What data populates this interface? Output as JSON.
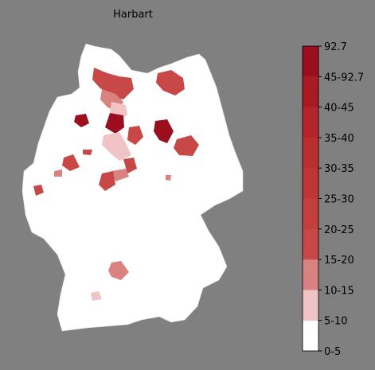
{
  "title": "Harbart",
  "colorbar": {
    "labels": [
      "0-5",
      "5-10",
      "10-15",
      "15-20",
      "20-25",
      "25-30",
      "30-35",
      "35-40",
      "40-45",
      "45-92.7",
      "92.7"
    ],
    "colors": [
      "#ffffff",
      "#f0c4c4",
      "#da8282",
      "#c84848",
      "#c43e3e",
      "#c03636",
      "#bb2e30",
      "#b4242a",
      "#aa1a24",
      "#9a0e1e"
    ]
  }
}
